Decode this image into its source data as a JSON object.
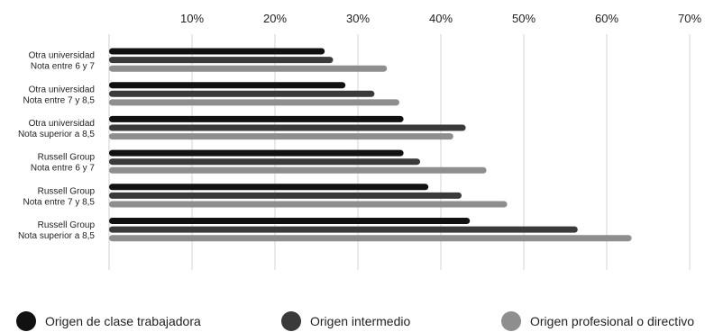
{
  "chart_data": {
    "type": "bar",
    "orientation": "horizontal",
    "title": "",
    "xlabel": "",
    "ylabel": "",
    "xlim": [
      0,
      70
    ],
    "x_ticks": [
      10,
      20,
      30,
      40,
      50,
      60,
      70
    ],
    "x_tick_labels": [
      "10%",
      "20%",
      "30%",
      "40%",
      "50%",
      "60%",
      "70%"
    ],
    "grid": true,
    "legend_position": "bottom",
    "categories": [
      [
        "Otra universidad",
        "Nota entre 6 y 7"
      ],
      [
        "Otra universidad",
        "Nota entre 7 y 8,5"
      ],
      [
        "Otra universidad",
        "Nota superior a 8,5"
      ],
      [
        "Russell Group",
        "Nota entre 6 y 7"
      ],
      [
        "Russell Group",
        "Nota entre 7 y 8,5"
      ],
      [
        "Russell Group",
        "Nota superior a 8,5"
      ]
    ],
    "series": [
      {
        "name": "Origen de clase trabajadora",
        "color": "#111111",
        "values": [
          26,
          28.5,
          35.5,
          35.5,
          38.5,
          43.5
        ]
      },
      {
        "name": "Origen intermedio",
        "color": "#3a3a3a",
        "values": [
          27,
          32,
          43,
          37.5,
          42.5,
          56.5
        ]
      },
      {
        "name": "Origen profesional o directivo",
        "color": "#8e8e8e",
        "values": [
          33.5,
          35,
          41.5,
          45.5,
          48,
          63
        ]
      }
    ]
  }
}
